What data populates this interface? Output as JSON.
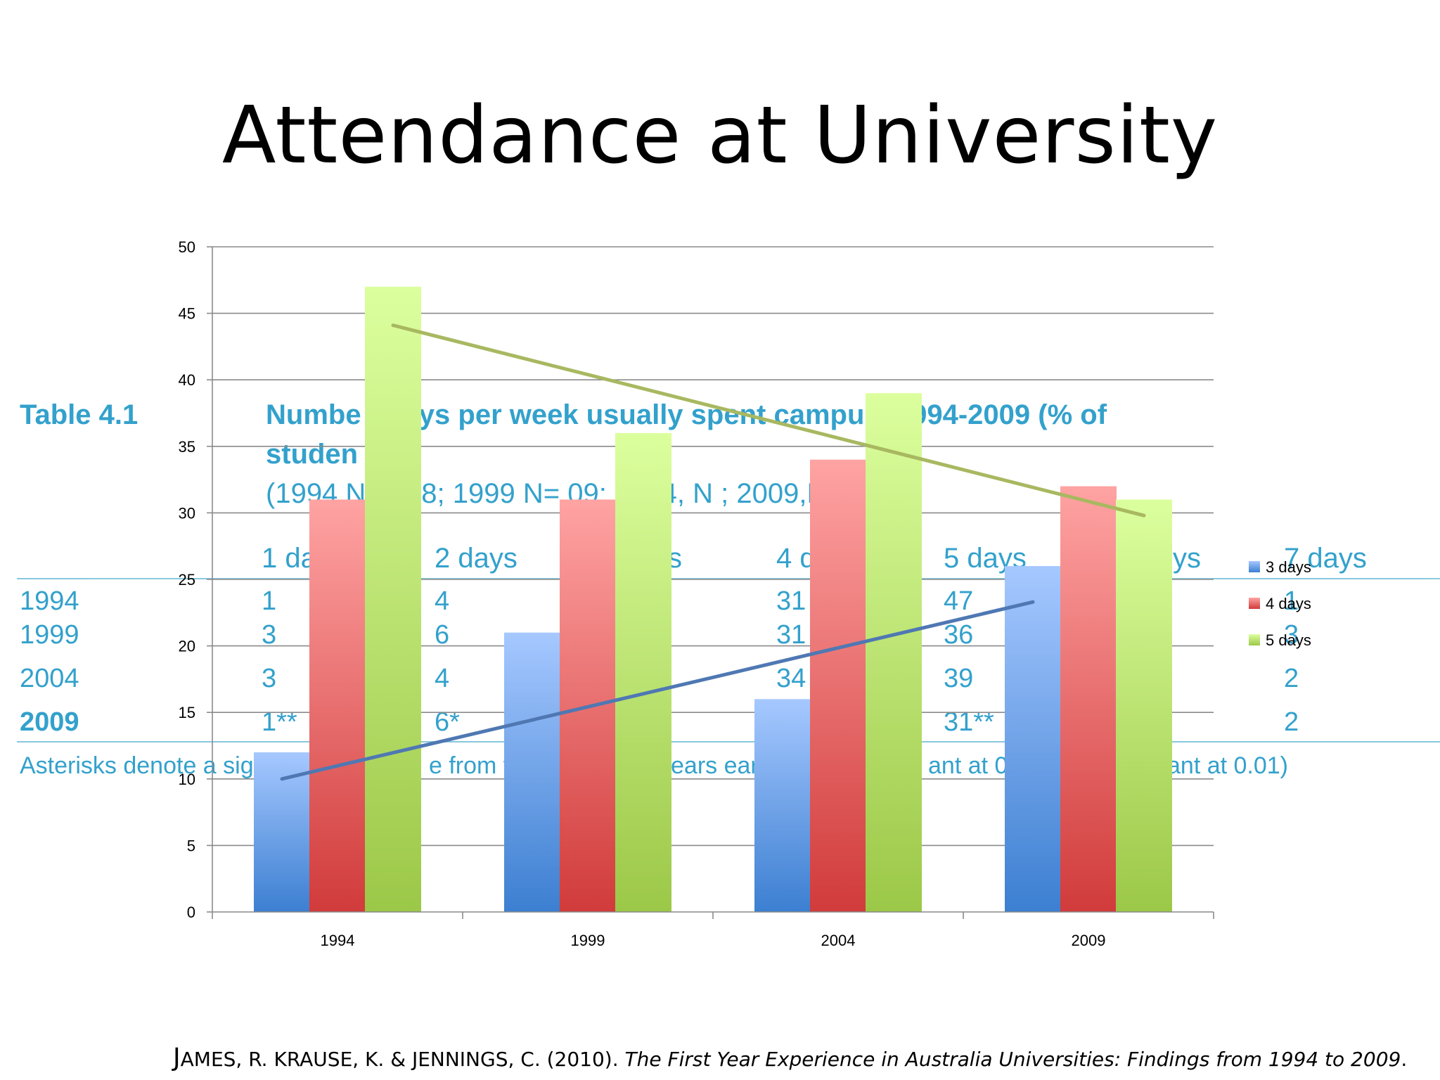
{
  "slide": {
    "title": "Attendance at University"
  },
  "table_image": {
    "label": "Table 4.1",
    "caption_line1": "Numbe   f days per week usually spent    campus, 1994-2009 (% of",
    "caption_line2": "studen",
    "sample_line": "(1994  N=   028; 1999  N=   09; 2004, N      ; 2009,N=      )",
    "headers": [
      "1 da",
      "2 days",
      "s",
      "4 d",
      "5 days",
      "ys",
      "7 days"
    ],
    "rows": [
      {
        "year": "1994",
        "cells": [
          "1",
          "4",
          "31",
          "47",
          "1"
        ]
      },
      {
        "year": "1999",
        "cells": [
          "3",
          "6",
          "31",
          "36",
          "3"
        ]
      },
      {
        "year": "2004",
        "cells": [
          "3",
          "4",
          "34",
          "39",
          "2"
        ]
      },
      {
        "year": "2009",
        "cells": [
          "1**",
          "6*",
          "",
          "31**",
          "2"
        ]
      }
    ],
    "footnote_parts": [
      "Asterisks denote a sig",
      "e from th",
      "ears earl",
      "ant at 0.0",
      "ant at 0.01)"
    ]
  },
  "chart_data": {
    "type": "bar",
    "categories": [
      "1994",
      "1999",
      "2004",
      "2009"
    ],
    "series": [
      {
        "name": "3 days",
        "values": [
          12,
          21,
          16,
          26
        ],
        "color_top": "#a6c8ff",
        "color_bottom": "#3c7fd1"
      },
      {
        "name": "4 days",
        "values": [
          31,
          31,
          34,
          32
        ],
        "color_top": "#ffa3a3",
        "color_bottom": "#d13b3b"
      },
      {
        "name": "5 days",
        "values": [
          47,
          36,
          39,
          31
        ],
        "color_top": "#dcff9e",
        "color_bottom": "#9cc848"
      }
    ],
    "trendlines": [
      {
        "series": "3 days",
        "start": 10,
        "end": 23.3,
        "color": "#4f78b3"
      },
      {
        "series": "5 days",
        "start": 44.1,
        "end": 29.8,
        "color": "#a8b860"
      }
    ],
    "ylim": [
      0,
      50
    ],
    "yticks": [
      0,
      5,
      10,
      15,
      20,
      25,
      30,
      35,
      40,
      45,
      50
    ],
    "grid": true,
    "legend_position": "right",
    "title": "",
    "xlabel": "",
    "ylabel": ""
  },
  "citation": {
    "initial": "J",
    "authors": "AMES, R. KRAUSE, K. & JENNINGS, C. (2010). ",
    "work": "The First Year Experience in Australia Universities: Findings from 1994 to 2009",
    "end": "."
  }
}
